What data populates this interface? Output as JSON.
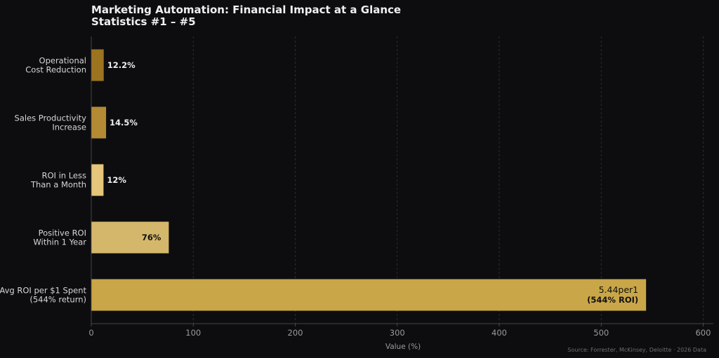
{
  "chart_data": {
    "type": "bar",
    "orientation": "horizontal",
    "title": "Marketing Automation: Financial Impact at a Glance",
    "subtitle": "Statistics #1 – #5",
    "xlabel": "Value (%)",
    "xlim": [
      0,
      610
    ],
    "xticks": [
      0,
      100,
      200,
      300,
      400,
      500,
      600
    ],
    "grid": "x-dashed",
    "source": "Source: Forrester, McKinsey, Deloitte · 2026 Data",
    "categories": [
      [
        "Operational",
        "Cost Reduction"
      ],
      [
        "Sales Productivity",
        "Increase"
      ],
      [
        "ROI in Less",
        "Than a Month"
      ],
      [
        "Positive ROI",
        "Within 1 Year"
      ],
      [
        "Avg ROI per $1 Spent",
        "(544% return)"
      ]
    ],
    "values": [
      12.2,
      14.5,
      12,
      76,
      544
    ],
    "value_labels": [
      [
        "12.2%"
      ],
      [
        "14.5%"
      ],
      [
        "12%"
      ],
      [
        "76%"
      ],
      [
        "5.44per1",
        "(544% ROI)"
      ]
    ],
    "label_position": [
      "outside",
      "outside",
      "outside",
      "inside",
      "inside"
    ],
    "colors": [
      "#9c7420",
      "#b58a34",
      "#e6c67a",
      "#d4b76b",
      "#c9a648"
    ]
  }
}
